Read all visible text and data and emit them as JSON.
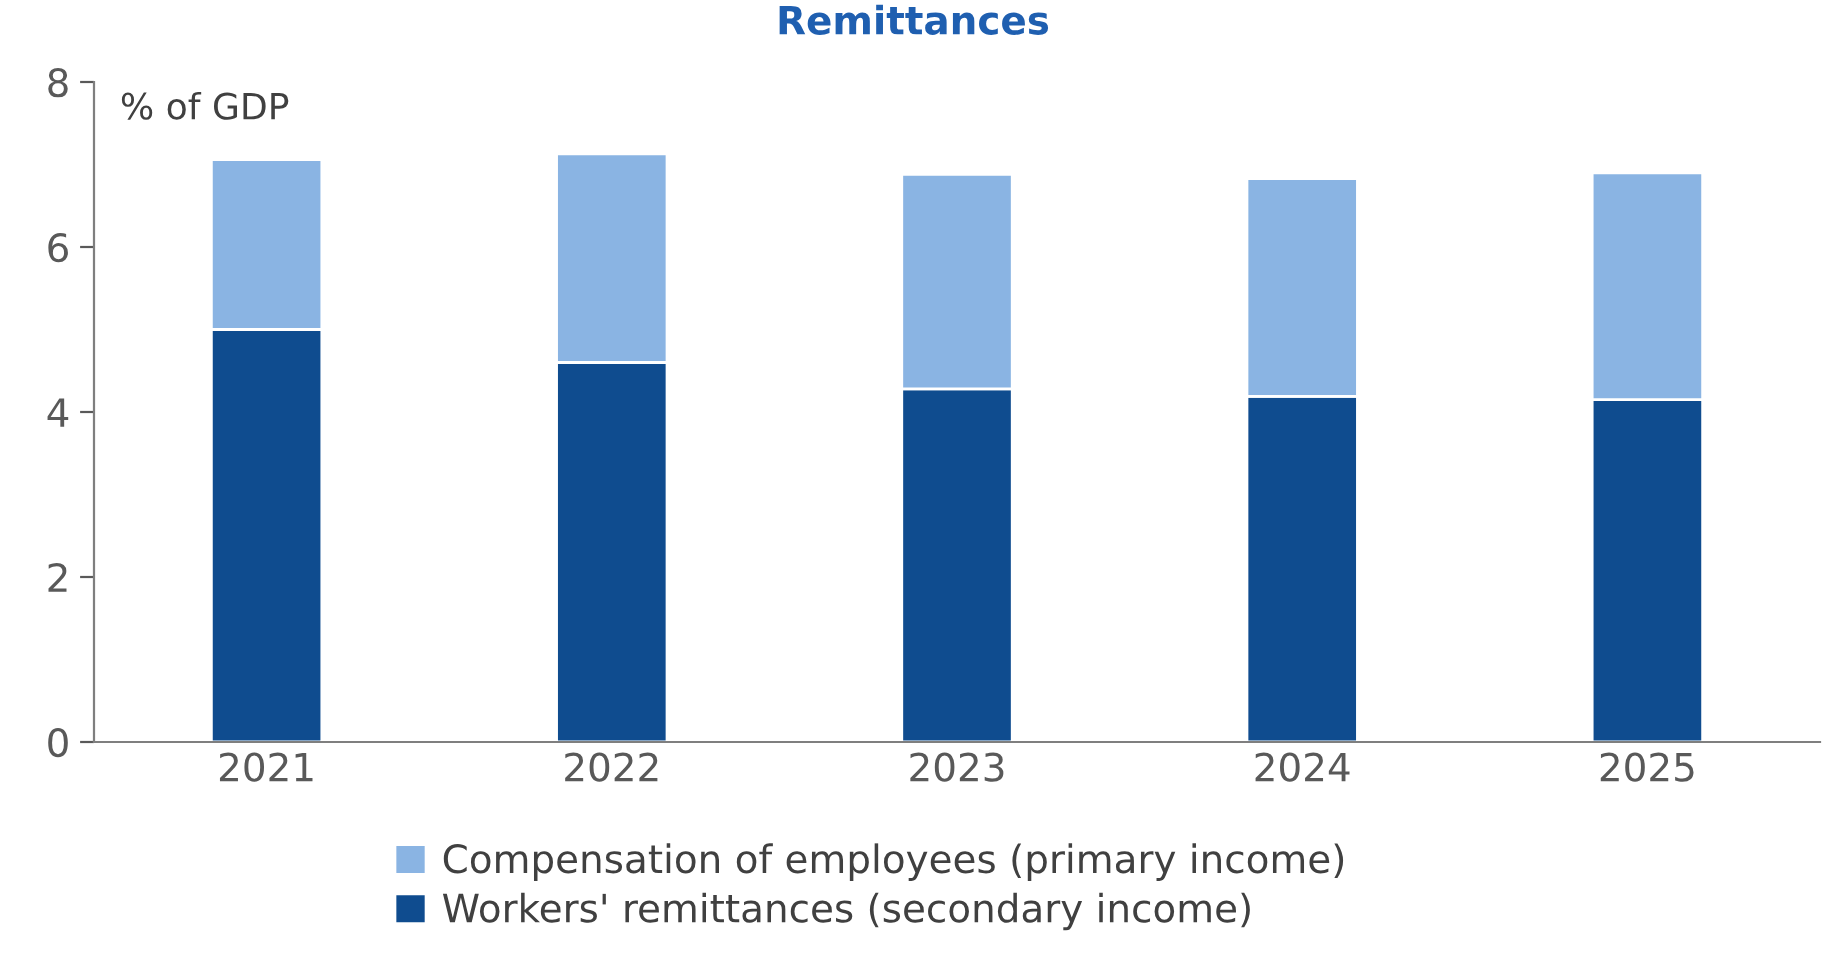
{
  "chart_data": {
    "type": "bar",
    "title": "Remittances",
    "ylabel": "% of GDP",
    "categories": [
      "2021",
      "2022",
      "2023",
      "2024",
      "2025"
    ],
    "series": [
      {
        "name": "Workers' remittances (secondary income)",
        "color": "#0f4c8f",
        "values": [
          5.0,
          4.6,
          4.28,
          4.19,
          4.15
        ]
      },
      {
        "name": "Compensation of employees (primary income)",
        "color": "#8ab4e3",
        "values": [
          2.06,
          2.53,
          2.6,
          2.64,
          2.75
        ]
      }
    ],
    "stacked": true,
    "ylim": [
      0,
      8
    ],
    "yticks": [
      0,
      2,
      4,
      6,
      8
    ],
    "grid": false,
    "legend": "bottom"
  }
}
